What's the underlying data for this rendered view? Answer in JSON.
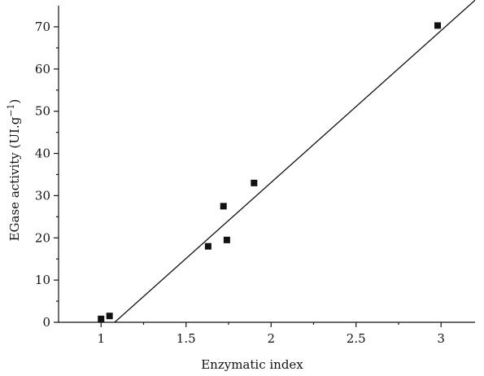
{
  "chart_data": {
    "type": "scatter",
    "title": "",
    "xlabel": "Enzymatic index",
    "ylabel_main": "EGase activity (UI.g",
    "ylabel_sup": "−1",
    "ylabel_tail": ")",
    "xlim": [
      0.75,
      3.2
    ],
    "ylim": [
      0,
      75
    ],
    "xticks": [
      {
        "value": 1,
        "label": "1"
      },
      {
        "value": 1.5,
        "label": "1.5"
      },
      {
        "value": 2,
        "label": "2"
      },
      {
        "value": 2.5,
        "label": "2.5"
      },
      {
        "value": 3,
        "label": "3"
      }
    ],
    "yticks": [
      {
        "value": 0,
        "label": "0"
      },
      {
        "value": 10,
        "label": "10"
      },
      {
        "value": 20,
        "label": "20"
      },
      {
        "value": 30,
        "label": "30"
      },
      {
        "value": 40,
        "label": "40"
      },
      {
        "value": 50,
        "label": "50"
      },
      {
        "value": 60,
        "label": "60"
      },
      {
        "value": 70,
        "label": "70"
      }
    ],
    "series": [
      {
        "points": [
          {
            "x": 1.0,
            "y": 0.8
          },
          {
            "x": 1.05,
            "y": 1.5
          },
          {
            "x": 1.63,
            "y": 18.0
          },
          {
            "x": 1.72,
            "y": 27.5
          },
          {
            "x": 1.74,
            "y": 19.5
          },
          {
            "x": 1.9,
            "y": 33.0
          },
          {
            "x": 2.98,
            "y": 70.3
          }
        ]
      }
    ],
    "trendline": {
      "type": "linear",
      "points": [
        {
          "x": 1.08,
          "y": 0
        },
        {
          "x": 3.2,
          "y": 76.3
        }
      ]
    },
    "grid": false,
    "legend": "none",
    "colors": {
      "marker": "#111111",
      "line": "#111111",
      "axis": "#111111"
    }
  }
}
